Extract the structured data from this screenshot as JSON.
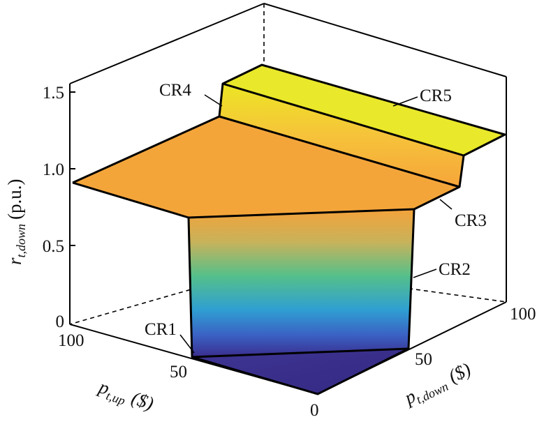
{
  "chart_data": {
    "type": "surface3d",
    "title": "",
    "zlabel": {
      "symbol": "r",
      "subscript": "t,down",
      "unit": "(p.u.)"
    },
    "xlabel": {
      "symbol": "p",
      "subscript": "t,up",
      "unit": "($)"
    },
    "ylabel": {
      "symbol": "p",
      "subscript": "t,down",
      "unit": "($)"
    },
    "z_ticks": [
      "0",
      "0.5",
      "1.0",
      "1.5"
    ],
    "x_ticks": [
      "100",
      "50"
    ],
    "y_ticks": [
      "0",
      "50",
      "100"
    ],
    "zlim": [
      0,
      1.6
    ],
    "colormap": [
      "#3a2a8c",
      "#2e8fd6",
      "#3cc39a",
      "#9fc85a",
      "#f7a238",
      "#e8e82a"
    ],
    "regions": [
      {
        "label": "CR1"
      },
      {
        "label": "CR2"
      },
      {
        "label": "CR3"
      },
      {
        "label": "CR4"
      },
      {
        "label": "CR5"
      }
    ]
  }
}
